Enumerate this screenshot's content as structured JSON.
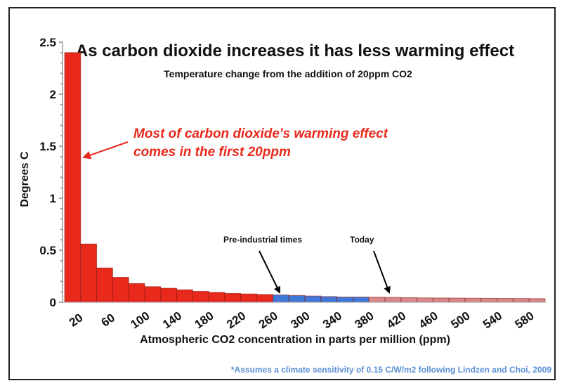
{
  "chart_data": {
    "type": "bar",
    "title": "As carbon dioxide increases it has less warming effect",
    "subtitle": "Temperature change from the addition of 20ppm CO2",
    "xlabel": "Atmospheric CO2 concentration in parts per million (ppm)",
    "ylabel": "Degrees C",
    "ylim": [
      0,
      2.5
    ],
    "yticks": [
      "0",
      "0.5",
      "1",
      "1.5",
      "2",
      "2.5"
    ],
    "xtick_labels": [
      "20",
      "60",
      "100",
      "140",
      "180",
      "220",
      "260",
      "300",
      "340",
      "380",
      "420",
      "460",
      "500",
      "540",
      "580"
    ],
    "categories": [
      20,
      40,
      60,
      80,
      100,
      120,
      140,
      160,
      180,
      200,
      220,
      240,
      260,
      280,
      300,
      320,
      340,
      360,
      380,
      400,
      420,
      440,
      460,
      480,
      500,
      520,
      540,
      560,
      580,
      600
    ],
    "values": [
      2.4,
      0.56,
      0.33,
      0.24,
      0.18,
      0.15,
      0.135,
      0.12,
      0.105,
      0.095,
      0.085,
      0.08,
      0.075,
      0.07,
      0.065,
      0.06,
      0.055,
      0.05,
      0.05,
      0.048,
      0.046,
      0.044,
      0.042,
      0.041,
      0.04,
      0.039,
      0.038,
      0.037,
      0.036,
      0.035
    ],
    "colors": {
      "early": "#e8291c",
      "pre_industrial": "#3f78d8",
      "future": "#d9878a",
      "annotation": "#e8291c",
      "footnote": "#5b8fd6"
    },
    "color_ranges": {
      "early": [
        20,
        260
      ],
      "pre_industrial": [
        280,
        380
      ],
      "future": [
        400,
        600
      ]
    },
    "grid": false,
    "annotations": {
      "main_line1": "Most of carbon dioxide's warming effect",
      "main_line2": "comes in the first 20ppm",
      "pre_industrial": "Pre-industrial times",
      "today": "Today"
    },
    "footnote": "*Assumes a climate sensitivity of 0.15 C/W/m2 following Lindzen and Choi, 2009"
  }
}
